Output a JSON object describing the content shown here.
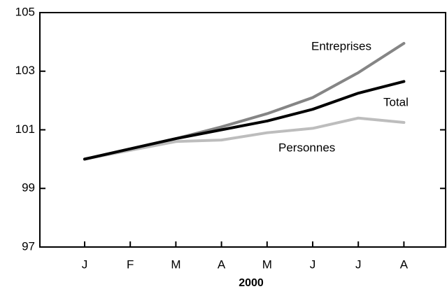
{
  "chart_data": {
    "type": "line",
    "x_label": "2000",
    "categories": [
      "J",
      "F",
      "M",
      "A",
      "M",
      "J",
      "J",
      "A"
    ],
    "series": [
      {
        "name": "Entreprises",
        "color": "#858585",
        "values": [
          100.0,
          100.35,
          100.7,
          101.1,
          101.55,
          102.1,
          102.95,
          103.95
        ]
      },
      {
        "name": "Total",
        "color": "#000000",
        "values": [
          100.0,
          100.35,
          100.7,
          101.0,
          101.3,
          101.7,
          102.25,
          102.65
        ]
      },
      {
        "name": "Personnes",
        "color": "#bdbdbd",
        "values": [
          100.0,
          100.3,
          100.6,
          100.65,
          100.9,
          101.05,
          101.4,
          101.25
        ]
      }
    ],
    "ylim": [
      97,
      105
    ],
    "yticks": [
      97,
      99,
      101,
      103,
      105
    ]
  }
}
